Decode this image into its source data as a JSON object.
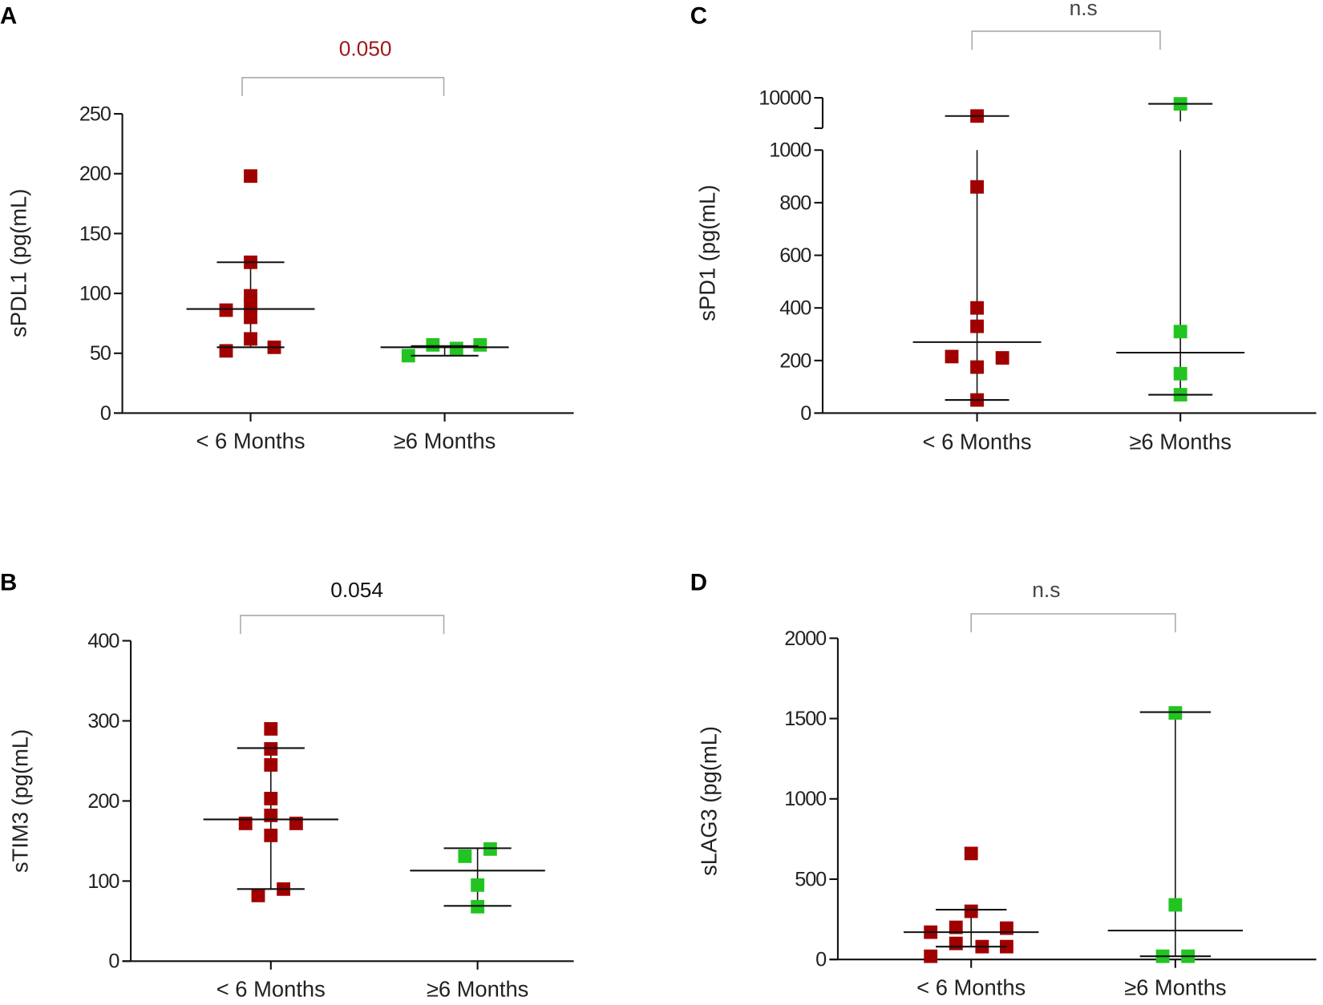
{
  "chart_data": [
    {
      "panel": "A",
      "type": "scatter",
      "ylabel": "sPDL1 (pg(mL)",
      "categories": [
        "< 6 Months",
        "≥6 Months"
      ],
      "ylim": [
        0,
        250
      ],
      "yticks": [
        0,
        50,
        100,
        150,
        200,
        250
      ],
      "comparison": {
        "label": "0.050",
        "color": "#a01818"
      },
      "groups": [
        {
          "name": "< 6 Months",
          "color": "#a00000",
          "values": [
            198,
            126,
            98,
            90,
            80,
            86,
            62,
            52,
            55
          ],
          "median": 87,
          "q1": 55,
          "q3": 126
        },
        {
          "name": "≥6 Months",
          "color": "#22c422",
          "values": [
            48,
            57,
            54,
            57
          ],
          "median": 55,
          "q1": 48,
          "q3": 56
        }
      ]
    },
    {
      "panel": "C",
      "type": "scatter",
      "ylabel": "sPD1 (pg(mL)",
      "categories": [
        "< 6 Months",
        "≥6 Months"
      ],
      "ylim": [
        0,
        10000
      ],
      "axis_break": [
        1000,
        9000
      ],
      "yticks": [
        0,
        200,
        400,
        600,
        800,
        1000,
        10000
      ],
      "comparison": {
        "label": "n.s",
        "color": "#444444"
      },
      "groups": [
        {
          "name": "< 6 Months",
          "color": "#a00000",
          "values": [
            9400,
            860,
            400,
            330,
            215,
            210,
            175,
            50
          ],
          "median": 270,
          "q1": 50,
          "q3": 9400
        },
        {
          "name": "≥6 Months",
          "color": "#22c422",
          "values": [
            9800,
            310,
            150,
            70
          ],
          "median": 230,
          "q1": 70,
          "q3": 9800
        }
      ]
    },
    {
      "panel": "B",
      "type": "scatter",
      "ylabel": "sTIM3 (pg(mL)",
      "categories": [
        "< 6 Months",
        "≥6 Months"
      ],
      "ylim": [
        0,
        400
      ],
      "yticks": [
        0,
        100,
        200,
        300,
        400
      ],
      "comparison": {
        "label": "0.054",
        "color": "#111111"
      },
      "groups": [
        {
          "name": "< 6 Months",
          "color": "#a00000",
          "values": [
            290,
            265,
            245,
            203,
            182,
            172,
            172,
            157,
            90,
            82
          ],
          "median": 177,
          "q1": 90,
          "q3": 266
        },
        {
          "name": "≥6 Months",
          "color": "#22c422",
          "values": [
            140,
            131,
            95,
            68
          ],
          "median": 113,
          "q1": 69,
          "q3": 141
        }
      ]
    },
    {
      "panel": "D",
      "type": "scatter",
      "ylabel": "sLAG3 (pg(mL)",
      "categories": [
        "< 6 Months",
        "≥6 Months"
      ],
      "ylim": [
        0,
        2000
      ],
      "yticks": [
        0,
        500,
        1000,
        1500,
        2000
      ],
      "comparison": {
        "label": "n.s",
        "color": "#444444"
      },
      "groups": [
        {
          "name": "< 6 Months",
          "color": "#a00000",
          "values": [
            660,
            300,
            200,
            195,
            170,
            100,
            80,
            80,
            20
          ],
          "median": 170,
          "q1": 80,
          "q3": 310
        },
        {
          "name": "≥6 Months",
          "color": "#22c422",
          "values": [
            1535,
            340,
            20,
            20
          ],
          "median": 180,
          "q1": 20,
          "q3": 1540
        }
      ]
    }
  ]
}
